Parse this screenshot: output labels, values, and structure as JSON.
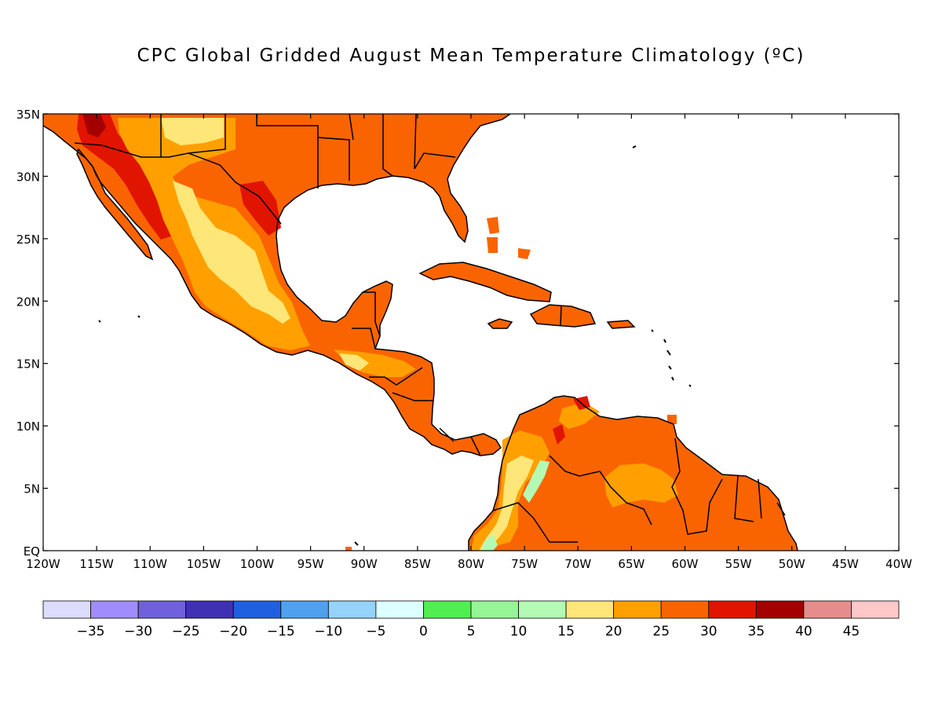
{
  "title": "CPC Global Gridded August Mean Temperature Climatology (ºC)",
  "map": {
    "lon_range": [
      -120,
      -40
    ],
    "lat_range": [
      0,
      35
    ],
    "lon_ticks": [
      "120W",
      "115W",
      "110W",
      "105W",
      "100W",
      "95W",
      "90W",
      "85W",
      "80W",
      "75W",
      "70W",
      "65W",
      "60W",
      "55W",
      "50W",
      "45W",
      "40W"
    ],
    "lat_ticks": [
      "EQ",
      "5N",
      "10N",
      "15N",
      "20N",
      "25N",
      "30N",
      "35N"
    ]
  },
  "colorbar": {
    "colors": [
      "#dcdcff",
      "#a08cff",
      "#7060dc",
      "#4030b4",
      "#2060e0",
      "#50a0f0",
      "#96d2fa",
      "#dcffff",
      "#50ee50",
      "#96f596",
      "#b4fab4",
      "#ffe678",
      "#ffa000",
      "#fa6400",
      "#e11400",
      "#a50000",
      "#e68c8c",
      "#ffc8c8"
    ],
    "labels": [
      "-35",
      "-30",
      "-25",
      "-20",
      "-15",
      "-10",
      "-5",
      "0",
      "5",
      "10",
      "15",
      "20",
      "25",
      "30",
      "35",
      "40",
      "45"
    ]
  },
  "legend_colors": {
    "c20_25": "#ffe678",
    "c25_30": "#ffa000",
    "c30_35": "#fa6400",
    "c35_40": "#e11400",
    "c40_45": "#a50000",
    "c10_15": "#b4fab4"
  }
}
